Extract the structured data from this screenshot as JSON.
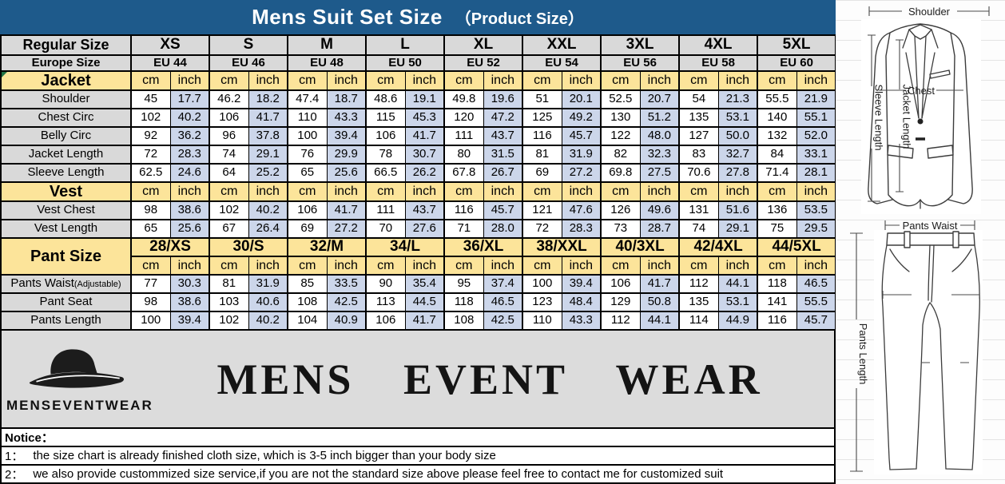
{
  "title": {
    "main": "Mens Suit Set Size",
    "sub": "（Product Size）"
  },
  "colors": {
    "blue": "#1e5a8b",
    "yellow": "#fce49a",
    "inch": "#ccd6ea",
    "gray": "#d9d9d9",
    "logo": "#dcdcdc"
  },
  "size_chart": {
    "regular_size_label": "Regular Size",
    "europe_size_label": "Europe Size",
    "unit_cm": "cm",
    "unit_inch": "inch",
    "sizes": [
      "XS",
      "S",
      "M",
      "L",
      "XL",
      "XXL",
      "3XL",
      "4XL",
      "5XL"
    ],
    "europe_sizes": [
      "EU 44",
      "EU 46",
      "EU 48",
      "EU 50",
      "EU 52",
      "EU 54",
      "EU 56",
      "EU 58",
      "EU 60"
    ],
    "sections": [
      {
        "label": "Jacket",
        "rows": [
          {
            "label": "Shoulder",
            "cm": [
              "45",
              "46.2",
              "47.4",
              "48.6",
              "49.8",
              "51",
              "52.5",
              "54",
              "55.5"
            ],
            "inch": [
              "17.7",
              "18.2",
              "18.7",
              "19.1",
              "19.6",
              "20.1",
              "20.7",
              "21.3",
              "21.9"
            ]
          },
          {
            "label": "Chest Circ",
            "cm": [
              "102",
              "106",
              "110",
              "115",
              "120",
              "125",
              "130",
              "135",
              "140"
            ],
            "inch": [
              "40.2",
              "41.7",
              "43.3",
              "45.3",
              "47.2",
              "49.2",
              "51.2",
              "53.1",
              "55.1"
            ]
          },
          {
            "label": "Belly Circ",
            "cm": [
              "92",
              "96",
              "100",
              "106",
              "111",
              "116",
              "122",
              "127",
              "132"
            ],
            "inch": [
              "36.2",
              "37.8",
              "39.4",
              "41.7",
              "43.7",
              "45.7",
              "48.0",
              "50.0",
              "52.0"
            ]
          },
          {
            "label": "Jacket Length",
            "cm": [
              "72",
              "74",
              "76",
              "78",
              "80",
              "81",
              "82",
              "83",
              "84"
            ],
            "inch": [
              "28.3",
              "29.1",
              "29.9",
              "30.7",
              "31.5",
              "31.9",
              "32.3",
              "32.7",
              "33.1"
            ]
          },
          {
            "label": "Sleeve Length",
            "cm": [
              "62.5",
              "64",
              "65",
              "66.5",
              "67.8",
              "69",
              "69.8",
              "70.6",
              "71.4"
            ],
            "inch": [
              "24.6",
              "25.2",
              "25.6",
              "26.2",
              "26.7",
              "27.2",
              "27.5",
              "27.8",
              "28.1"
            ]
          }
        ]
      },
      {
        "label": "Vest",
        "rows": [
          {
            "label": "Vest Chest",
            "cm": [
              "98",
              "102",
              "106",
              "111",
              "116",
              "121",
              "126",
              "131",
              "136"
            ],
            "inch": [
              "38.6",
              "40.2",
              "41.7",
              "43.7",
              "45.7",
              "47.6",
              "49.6",
              "51.6",
              "53.5"
            ]
          },
          {
            "label": "Vest Length",
            "cm": [
              "65",
              "67",
              "69",
              "70",
              "71",
              "72",
              "73",
              "74",
              "75"
            ],
            "inch": [
              "25.6",
              "26.4",
              "27.2",
              "27.6",
              "28.0",
              "28.3",
              "28.7",
              "29.1",
              "29.5"
            ]
          }
        ]
      },
      {
        "label": "Pant Size",
        "pant_sizes": [
          "28/XS",
          "30/S",
          "32/M",
          "34/L",
          "36/XL",
          "38/XXL",
          "40/3XL",
          "42/4XL",
          "44/5XL"
        ],
        "rows": [
          {
            "label": "Pants Waist",
            "label_suffix": "(Adjustable)",
            "cm": [
              "77",
              "81",
              "85",
              "90",
              "95",
              "100",
              "106",
              "112",
              "118"
            ],
            "inch": [
              "30.3",
              "31.9",
              "33.5",
              "35.4",
              "37.4",
              "39.4",
              "41.7",
              "44.1",
              "46.5"
            ]
          },
          {
            "label": "Pant Seat",
            "cm": [
              "98",
              "103",
              "108",
              "113",
              "118",
              "123",
              "129",
              "135",
              "141"
            ],
            "inch": [
              "38.6",
              "40.6",
              "42.5",
              "44.5",
              "46.5",
              "48.4",
              "50.8",
              "53.1",
              "55.5"
            ]
          },
          {
            "label": "Pants Length",
            "cm": [
              "100",
              "102",
              "104",
              "106",
              "108",
              "110",
              "112",
              "114",
              "116"
            ],
            "inch": [
              "39.4",
              "40.2",
              "40.9",
              "41.7",
              "42.5",
              "43.3",
              "44.1",
              "44.9",
              "45.7"
            ]
          }
        ]
      }
    ]
  },
  "logo": {
    "brand_small": "MENSEVENTWEAR",
    "brand_large": "MENS EVENT WEAR"
  },
  "notice": {
    "heading": "Notice：",
    "items": [
      {
        "num": "1：",
        "text": "the size chart is already finished cloth size, which is 3-5 inch bigger than your body size"
      },
      {
        "num": "2：",
        "text": "we also provide custommized size service,if you are not the standard size above please feel free to contact me for customized suit"
      }
    ]
  },
  "diagrams": {
    "jacket": {
      "shoulder": "Shoulder",
      "chest": "Chest",
      "jacket_length": "Jacket Length",
      "sleeve_length": "Sleeve Length"
    },
    "pants": {
      "waist": "Pants Waist",
      "length": "Pants Length"
    }
  }
}
